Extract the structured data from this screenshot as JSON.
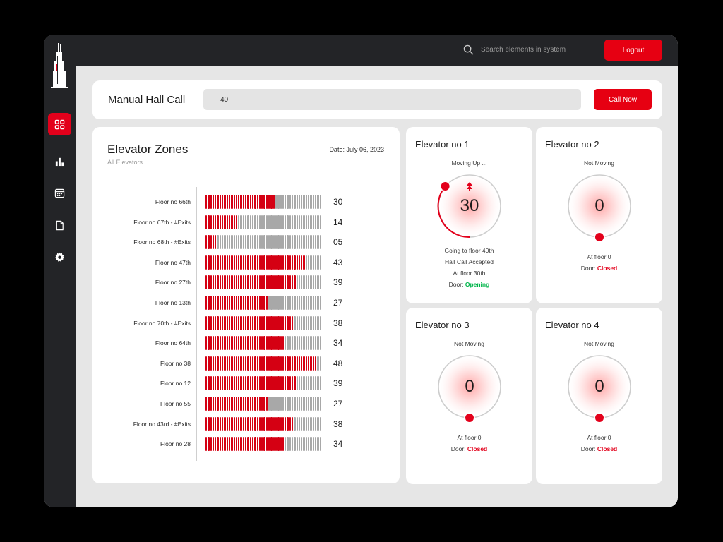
{
  "search": {
    "placeholder": "Search elements in system"
  },
  "header": {
    "logout_label": "Logout"
  },
  "hall_call": {
    "title": "Manual Hall Call",
    "input_value": "40",
    "button_label": "Call Now"
  },
  "zones": {
    "title": "Elevator Zones",
    "subtitle": "All Elevators",
    "date": "Date: July 06, 2023",
    "rows": [
      {
        "label": "Floor no 66th",
        "value": "30",
        "level": 30
      },
      {
        "label": "Floor no 67th - #Exits",
        "value": "14",
        "level": 14
      },
      {
        "label": "Floor no 68th - #Exits",
        "value": "05",
        "level": 5
      },
      {
        "label": "Floor no 47th",
        "value": "43",
        "level": 43
      },
      {
        "label": "Floor no 27th",
        "value": "39",
        "level": 39
      },
      {
        "label": "Floor no 13th",
        "value": "27",
        "level": 27
      },
      {
        "label": "Floor no 70th - #Exits",
        "value": "38",
        "level": 38
      },
      {
        "label": "Floor no 64th",
        "value": "34",
        "level": 34
      },
      {
        "label": "Floor no 38",
        "value": "48",
        "level": 48
      },
      {
        "label": "Floor no 12",
        "value": "39",
        "level": 39
      },
      {
        "label": "Floor no 55",
        "value": "27",
        "level": 27
      },
      {
        "label": "Floor no 43rd - #Exits",
        "value": "38",
        "level": 38
      },
      {
        "label": "Floor no 28",
        "value": "34",
        "level": 34
      }
    ]
  },
  "elevators": [
    {
      "title": "Elevator no 1",
      "status": "Moving Up ...",
      "value": "30",
      "moving": true,
      "lines": [
        "Going to floor 40th",
        "Hall Call Accepted",
        "At floor 30th"
      ],
      "door_label": "Door: ",
      "door_state": "Opening"
    },
    {
      "title": "Elevator no 2",
      "status": "Not Moving",
      "value": "0",
      "moving": false,
      "lines": [
        "At floor 0"
      ],
      "door_label": "Door: ",
      "door_state": "Closed"
    },
    {
      "title": "Elevator no 3",
      "status": "Not Moving",
      "value": "0",
      "moving": false,
      "lines": [
        "At floor 0"
      ],
      "door_label": "Door: ",
      "door_state": "Closed"
    },
    {
      "title": "Elevator no 4",
      "status": "Not Moving",
      "value": "0",
      "moving": false,
      "lines": [
        "At floor 0"
      ],
      "door_label": "Door: ",
      "door_state": "Closed"
    }
  ],
  "colors": {
    "accent": "#e60012",
    "sidebar": "#232427",
    "door_open": "#00b54a",
    "door_closed": "#e3001b"
  },
  "icons": {
    "logo": "skyscraper-logo",
    "nav": [
      "dashboard-grid-icon",
      "bar-chart-icon",
      "calendar-icon",
      "document-icon",
      "gear-icon"
    ],
    "search": "search-icon",
    "moving_up": "up-arrow-icon"
  }
}
